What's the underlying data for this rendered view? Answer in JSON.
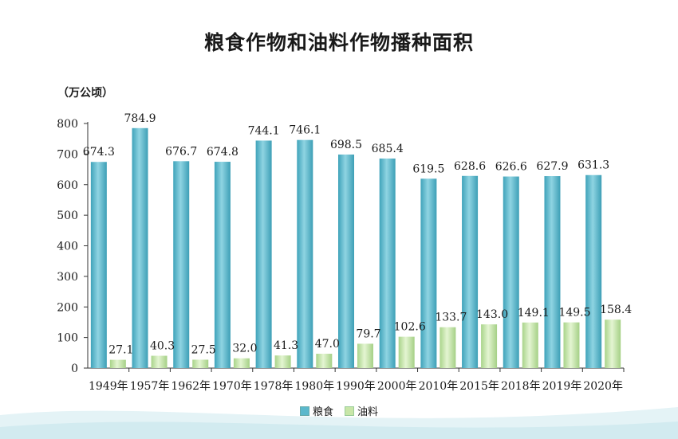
{
  "title": "粮食作物和油料作物播种面积",
  "unit_label": "（万公顷）",
  "colors": {
    "grain": "#5bb8cc",
    "oil": "#c8e6a8"
  },
  "chart_data": {
    "type": "bar",
    "categories": [
      "1949年",
      "1957年",
      "1962年",
      "1970年",
      "1978年",
      "1980年",
      "1990年",
      "2000年",
      "2010年",
      "2015年",
      "2018年",
      "2019年",
      "2020年"
    ],
    "series": [
      {
        "name": "粮食",
        "values": [
          674.3,
          784.9,
          676.7,
          674.8,
          744.1,
          746.1,
          698.5,
          685.4,
          619.5,
          628.6,
          626.6,
          627.9,
          631.3
        ]
      },
      {
        "name": "油料",
        "values": [
          27.1,
          40.3,
          27.5,
          32.0,
          41.3,
          47.0,
          79.7,
          102.6,
          133.7,
          143.0,
          149.1,
          149.5,
          158.4
        ]
      }
    ],
    "yticks": [
      0,
      100,
      200,
      300,
      400,
      500,
      600,
      700,
      800
    ],
    "ylim": [
      0,
      800
    ],
    "ylabel": "（万公顷）",
    "grid": false,
    "legend_position": "bottom"
  }
}
